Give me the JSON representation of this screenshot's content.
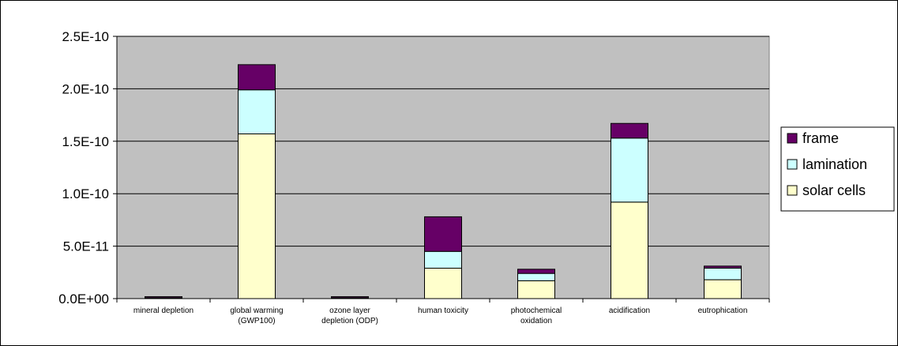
{
  "chart_data": {
    "type": "bar",
    "stacked": true,
    "categories": [
      [
        "mineral depletion"
      ],
      [
        "global warming",
        "(GWP100)"
      ],
      [
        "ozone layer",
        "depletion (ODP)"
      ],
      [
        "human toxicity"
      ],
      [
        "photochemical",
        "oxidation"
      ],
      [
        "acidification"
      ],
      [
        "eutrophication"
      ]
    ],
    "series": [
      {
        "name": "solar cells",
        "color": "#ffffcc",
        "values": [
          5e-13,
          1.57e-10,
          5e-13,
          2.9e-11,
          1.7e-11,
          9.2e-11,
          1.8e-11
        ]
      },
      {
        "name": "lamination",
        "color": "#ccffff",
        "values": [
          2e-13,
          4.2e-11,
          2e-13,
          1.6e-11,
          7e-12,
          6.1e-11,
          1.1e-11
        ]
      },
      {
        "name": "frame",
        "color": "#660066",
        "values": [
          6e-13,
          2.4e-11,
          6e-13,
          3.3e-11,
          4e-12,
          1.4e-11,
          2e-12
        ]
      }
    ],
    "legend_order": [
      "frame",
      "lamination",
      "solar cells"
    ],
    "y_ticks": [
      "0.0E+00",
      "5.0E-11",
      "1.0E-10",
      "1.5E-10",
      "2.0E-10",
      "2.5E-10"
    ],
    "ylim": [
      0,
      2.5e-10
    ],
    "grid": true,
    "plot_background": "#c0c0c0",
    "legend_position": "right"
  }
}
